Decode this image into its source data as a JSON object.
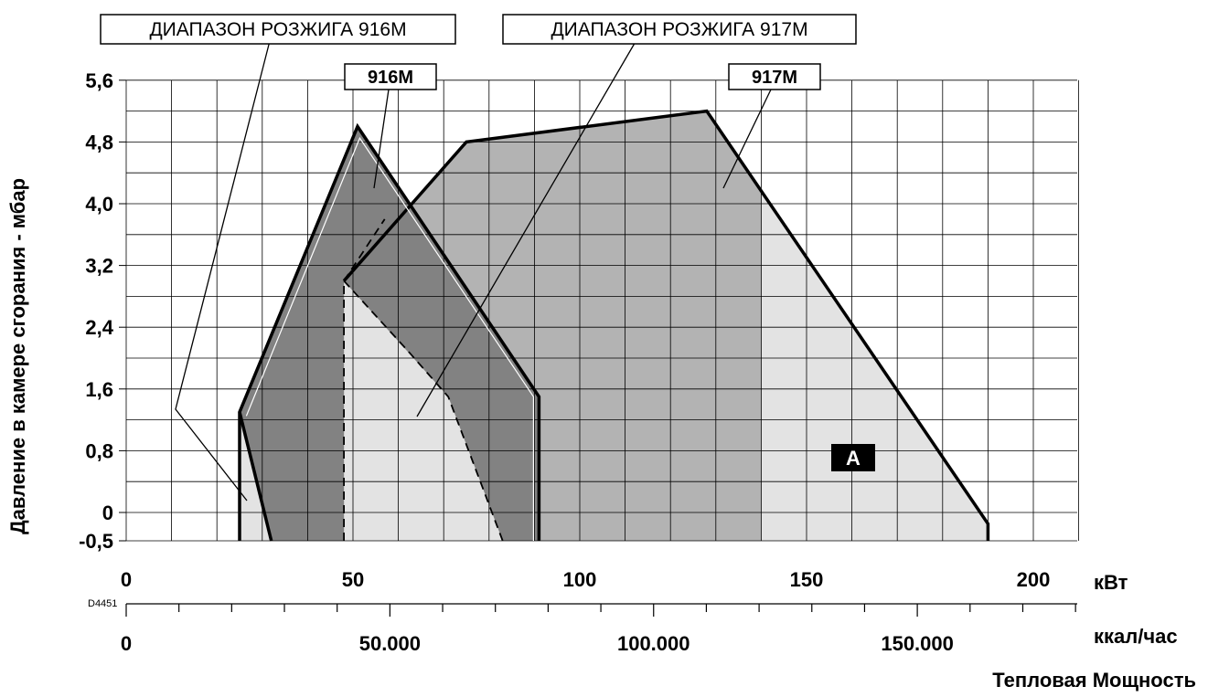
{
  "chart_data": {
    "type": "area",
    "ylabel": "Давление в камере сгорания - мбар",
    "xlabel": "Тепловая Мощность",
    "x_unit_primary": "кВт",
    "x_unit_secondary": "ккал/час",
    "drawing_code": "D4451",
    "x_ticks_primary": [
      {
        "value": 0,
        "label": "0"
      },
      {
        "value": 50,
        "label": "50"
      },
      {
        "value": 100,
        "label": "100"
      },
      {
        "value": 150,
        "label": "150"
      },
      {
        "value": 200,
        "label": "200"
      }
    ],
    "x_ticks_secondary": [
      {
        "value": 0,
        "label": "0"
      },
      {
        "value": 50000,
        "label": "50.000"
      },
      {
        "value": 100000,
        "label": "100.000"
      },
      {
        "value": 150000,
        "label": "150.000"
      }
    ],
    "y_ticks": [
      {
        "value": -0.5,
        "label": "-0,5"
      },
      {
        "value": 0,
        "label": "0"
      },
      {
        "value": 0.8,
        "label": "0,8"
      },
      {
        "value": 1.6,
        "label": "1,6"
      },
      {
        "value": 2.4,
        "label": "2,4"
      },
      {
        "value": 3.2,
        "label": "3,2"
      },
      {
        "value": 4.0,
        "label": "4,0"
      },
      {
        "value": 4.8,
        "label": "4,8"
      },
      {
        "value": 5.6,
        "label": "5,6"
      }
    ],
    "xlim": [
      0,
      210
    ],
    "ylim": [
      -0.5,
      5.6
    ],
    "grid": true,
    "series": [
      {
        "name": "917M",
        "kind": "working-range",
        "points": [
          [
            48,
            3.0
          ],
          [
            75,
            4.8
          ],
          [
            128,
            5.2
          ],
          [
            190,
            -0.2
          ],
          [
            190,
            -0.5
          ],
          [
            48,
            -0.5
          ]
        ]
      },
      {
        "name": "916M",
        "kind": "working-range",
        "points": [
          [
            25,
            1.3
          ],
          [
            51,
            5.0
          ],
          [
            91,
            1.5
          ],
          [
            91,
            -0.5
          ],
          [
            25,
            -0.5
          ]
        ]
      },
      {
        "name": "ДИАПАЗОН РОЗЖИГА 916M",
        "kind": "ignition-range",
        "points": [
          [
            25,
            1.3
          ],
          [
            25,
            -0.5
          ],
          [
            32,
            -0.5
          ]
        ]
      },
      {
        "name": "ДИАПАЗОН РОЗЖИГА 917M",
        "kind": "ignition-range",
        "points": [
          [
            48,
            3.0
          ],
          [
            48,
            -0.5
          ],
          [
            83,
            -0.5
          ],
          [
            71,
            1.5
          ]
        ]
      }
    ],
    "callouts": [
      {
        "label": "ДИАПАЗОН РОЗЖИГА 916M"
      },
      {
        "label": "ДИАПАЗОН РОЗЖИГА 917M"
      },
      {
        "label": "916M"
      },
      {
        "label": "917M"
      }
    ],
    "region_label": "A",
    "colors": {
      "light_fill": "#e3e3e3",
      "mid_fill": "#b3b3b3",
      "dark_fill": "#828282",
      "grid": "#000000",
      "outline": "#000000"
    }
  }
}
